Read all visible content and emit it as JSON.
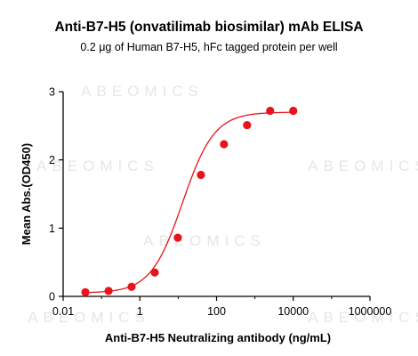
{
  "chart_data": {
    "type": "scatter",
    "title": "Anti-B7-H5 (onvatilimab biosimilar) mAb ELISA",
    "subtitle": "0.2 μg of Human B7-H5, hFc tagged protein per well",
    "xlabel": "Anti-B7-H5 Neutralizing antibody (ng/mL)",
    "ylabel": "Mean Abs.(OD450)",
    "x_scale": "log",
    "xlim": [
      0.01,
      1000000
    ],
    "ylim": [
      0,
      3
    ],
    "x_ticks": [
      0.01,
      1,
      100,
      10000,
      1000000
    ],
    "x_tick_labels": [
      "0.01",
      "1",
      "100",
      "10000",
      "1000000"
    ],
    "y_ticks": [
      0,
      1,
      2,
      3
    ],
    "y_tick_labels": [
      "0",
      "1",
      "2",
      "3"
    ],
    "grid": false,
    "series": [
      {
        "color": "#e8141b",
        "points": [
          {
            "x": 0.038,
            "y": 0.06
          },
          {
            "x": 0.153,
            "y": 0.08
          },
          {
            "x": 0.61,
            "y": 0.14
          },
          {
            "x": 2.44,
            "y": 0.35
          },
          {
            "x": 9.77,
            "y": 0.86
          },
          {
            "x": 39.1,
            "y": 1.78
          },
          {
            "x": 156,
            "y": 2.23
          },
          {
            "x": 625,
            "y": 2.51
          },
          {
            "x": 2500,
            "y": 2.72
          },
          {
            "x": 10000,
            "y": 2.72
          }
        ],
        "fit": {
          "model": "4PL",
          "bottom": 0.05,
          "top": 2.7,
          "ec50": 13.0,
          "hill": 1.05
        }
      }
    ]
  },
  "watermark": "ABEOMICS"
}
